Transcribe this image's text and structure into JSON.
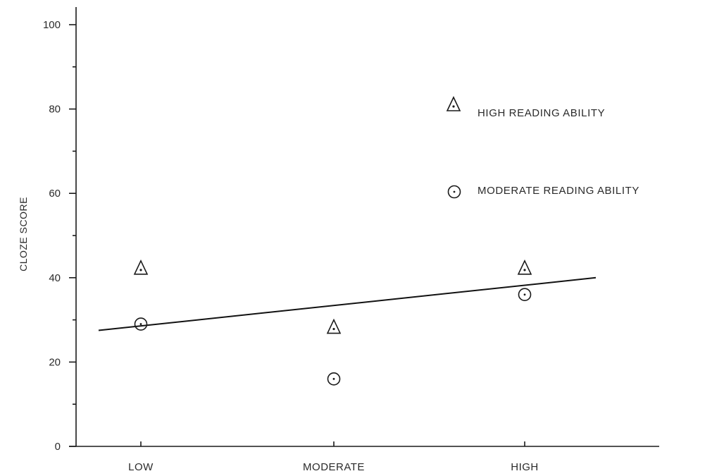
{
  "chart_data": {
    "type": "scatter",
    "title": "",
    "xlabel": "",
    "ylabel": "CLOZE SCORE",
    "categories": [
      "LOW",
      "MODERATE",
      "HIGH"
    ],
    "yticks": [
      0,
      20,
      40,
      60,
      80,
      100
    ],
    "ylim": [
      0,
      100
    ],
    "series": [
      {
        "name": "HIGH READING ABILITY",
        "marker": "triangle",
        "values": [
          42,
          28,
          42
        ]
      },
      {
        "name": "MODERATE READING ABILITY",
        "marker": "circle",
        "values": [
          29,
          16,
          36
        ]
      }
    ],
    "trend_line": {
      "y_start": 27.5,
      "y_end": 40
    },
    "legend_position": "top-right",
    "grid": false,
    "colors": {
      "ink": "#1a1a1a",
      "background": "#ffffff"
    }
  }
}
